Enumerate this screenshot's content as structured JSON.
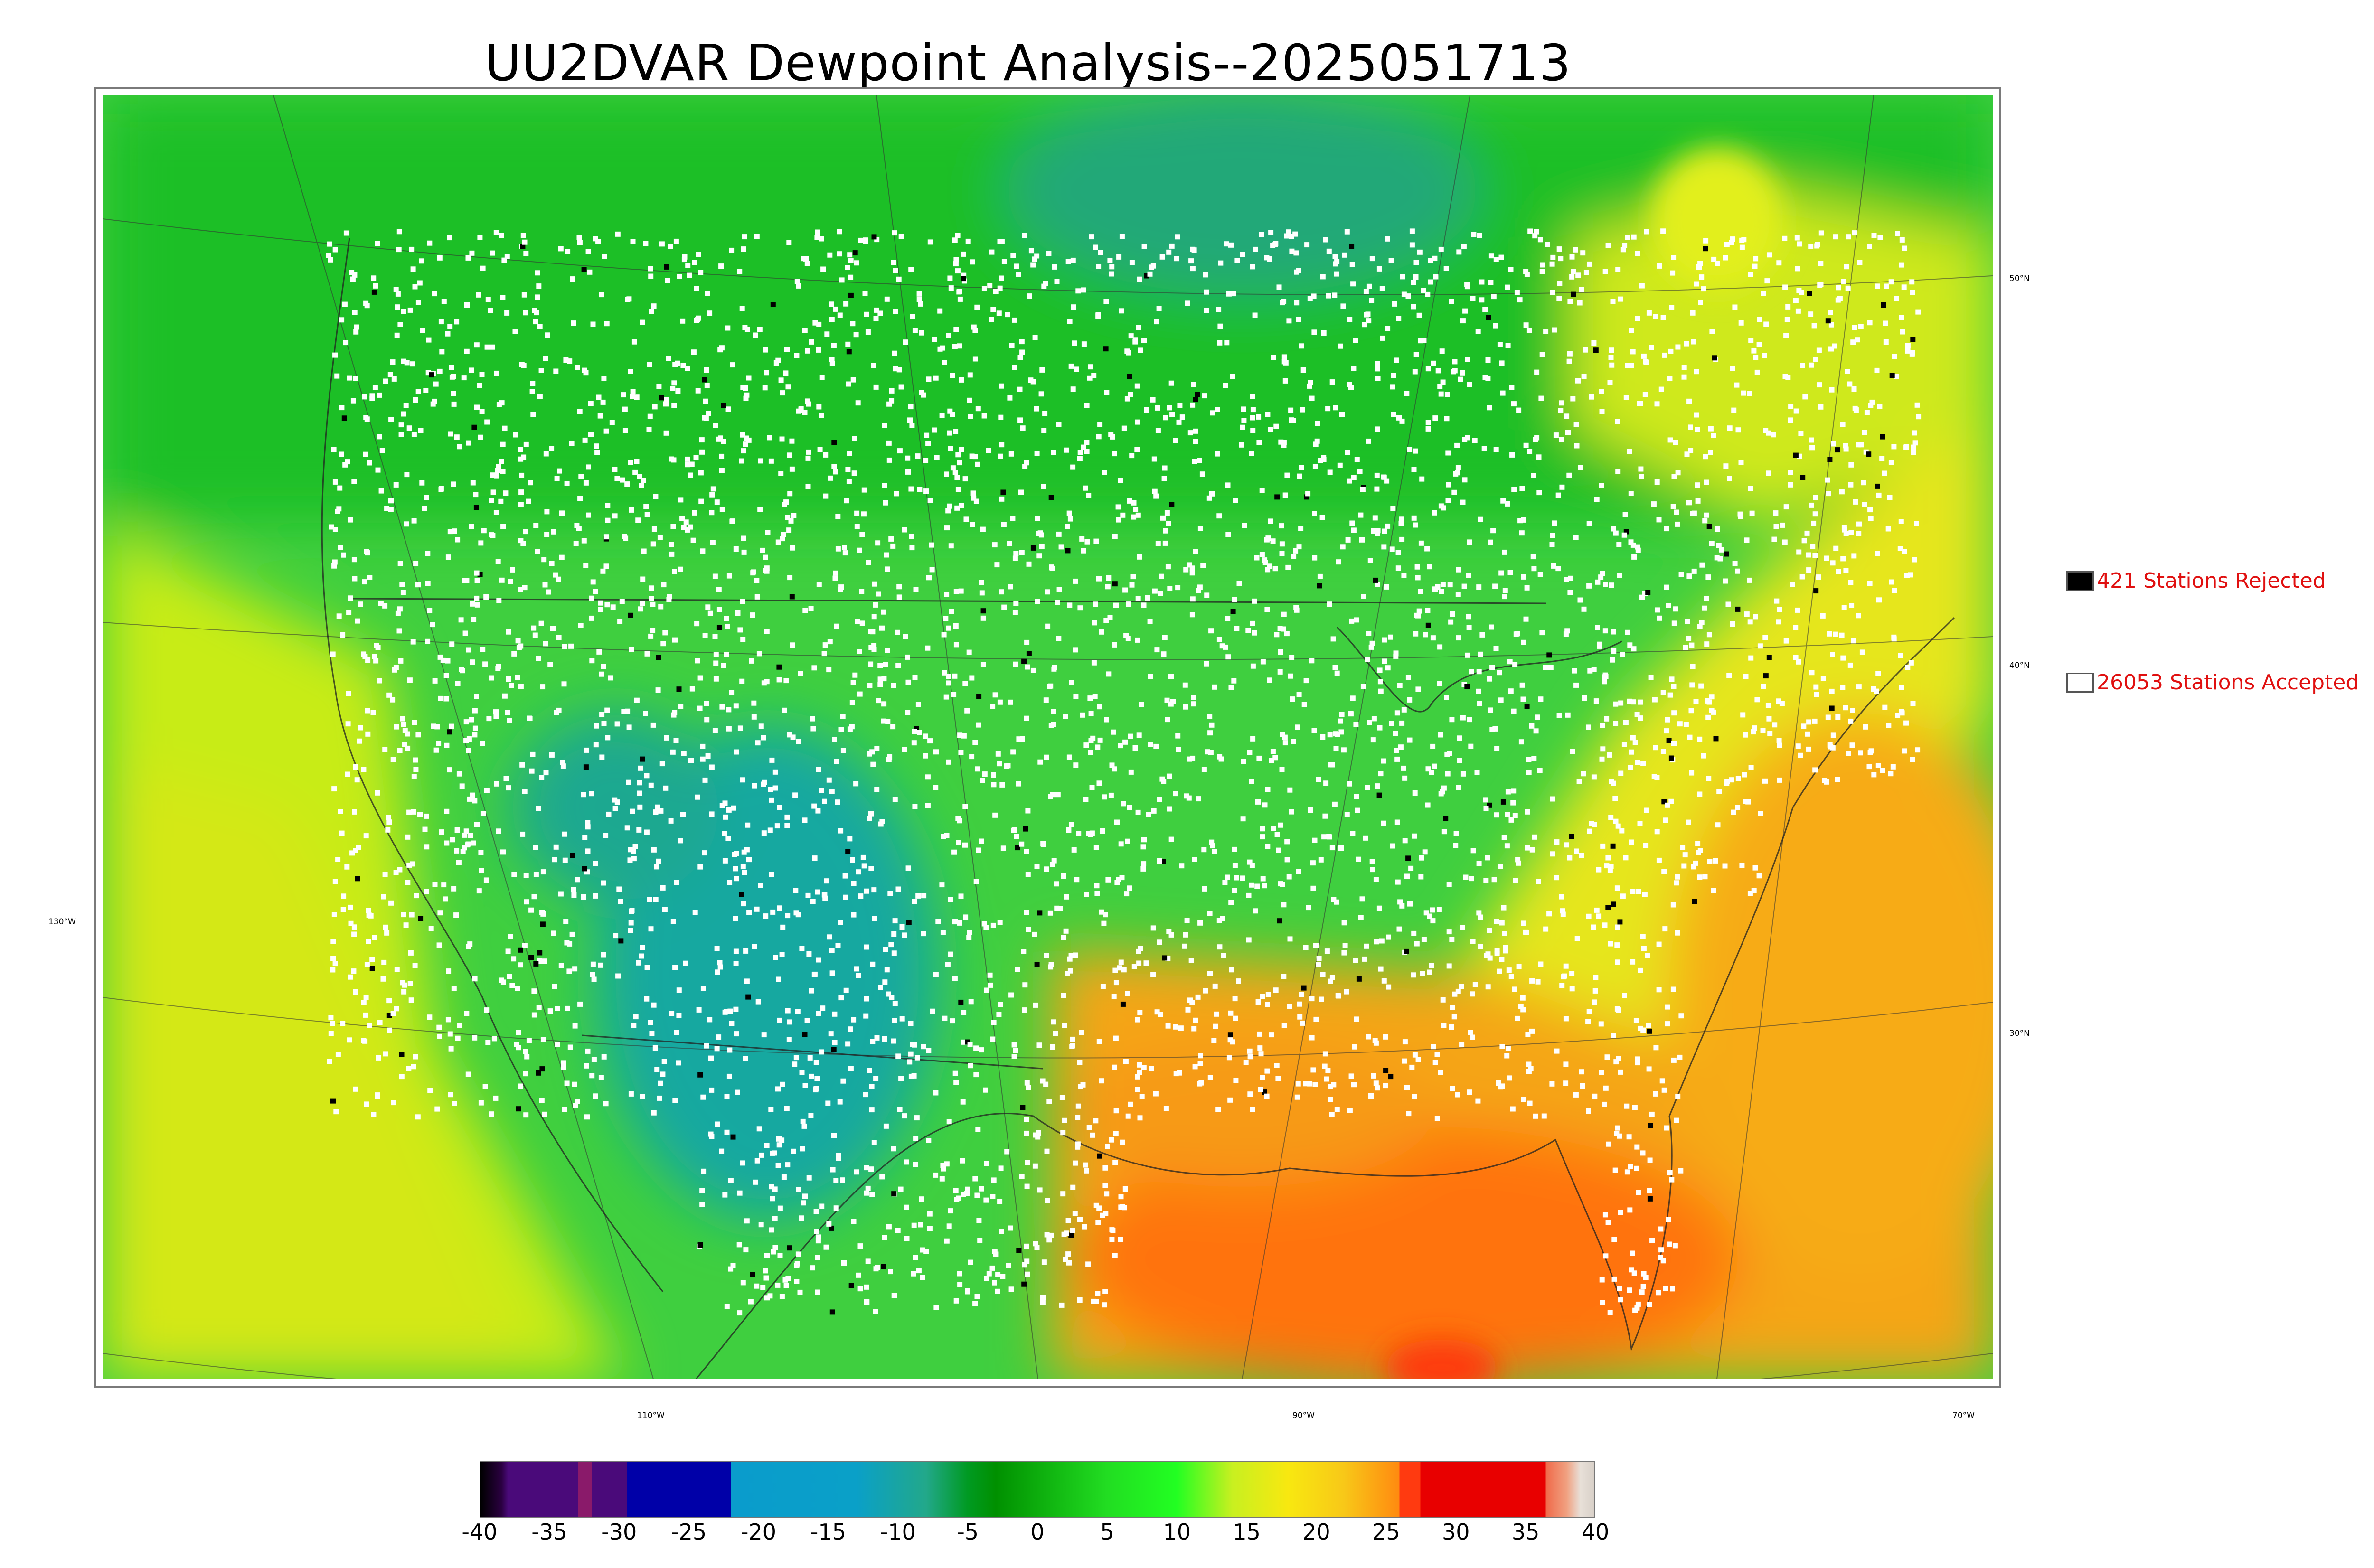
{
  "title": "UU2DVAR Dewpoint Analysis--2025051713",
  "map": {
    "lat_labels": [
      "50°N",
      "40°N",
      "30°N"
    ],
    "lon_labels": [
      "130°W",
      "110°W",
      "90°W",
      "70°W"
    ],
    "colors": {
      "ocean_west": "#c8ee10",
      "ocean_southeast": "#f6ac18",
      "gulf": "#ff7a10",
      "canada": "#22bb22",
      "plains": "#11b822",
      "dry_southwest": "#1aa8a8",
      "humid_east": "#e8e818",
      "accepted_station": "#ffffff",
      "rejected_station": "#000000"
    }
  },
  "legend": {
    "rejected": {
      "label": "421 Stations Rejected",
      "color": "#000000"
    },
    "accepted": {
      "label": "26053 Stations Accepted",
      "color": "#ffffff"
    }
  },
  "colorbar": {
    "min": -40,
    "max": 40,
    "ticks": [
      "-40",
      "-35",
      "-30",
      "-25",
      "-20",
      "-15",
      "-10",
      "-5",
      "0",
      "5",
      "10",
      "15",
      "20",
      "25",
      "30",
      "35",
      "40"
    ],
    "stops": [
      {
        "value": -40,
        "color": "#000000"
      },
      {
        "value": -38.5,
        "color": "#2a0040"
      },
      {
        "value": -38,
        "color": "#4a0a7a"
      },
      {
        "value": -33,
        "color": "#4a0a7a"
      },
      {
        "value": -33,
        "color": "#8a1a6a"
      },
      {
        "value": -32,
        "color": "#8a1a6a"
      },
      {
        "value": -32,
        "color": "#4a0a7a"
      },
      {
        "value": -29.5,
        "color": "#4a0a7a"
      },
      {
        "value": -29.5,
        "color": "#0000a8"
      },
      {
        "value": -22,
        "color": "#0000a8"
      },
      {
        "value": -22,
        "color": "#0a9ccc"
      },
      {
        "value": -13,
        "color": "#0aa0c8"
      },
      {
        "value": -8,
        "color": "#22a88a"
      },
      {
        "value": -5,
        "color": "#009a22"
      },
      {
        "value": -3,
        "color": "#009000"
      },
      {
        "value": 5,
        "color": "#22dd22"
      },
      {
        "value": 10,
        "color": "#22ff22"
      },
      {
        "value": 14,
        "color": "#c8f020"
      },
      {
        "value": 18,
        "color": "#f8e810"
      },
      {
        "value": 22,
        "color": "#f8c818"
      },
      {
        "value": 26,
        "color": "#ff8a10"
      },
      {
        "value": 26,
        "color": "#ff3a10"
      },
      {
        "value": 27.5,
        "color": "#ff3a10"
      },
      {
        "value": 27.5,
        "color": "#e80000"
      },
      {
        "value": 36.5,
        "color": "#e80000"
      },
      {
        "value": 36.5,
        "color": "#f06a4a"
      },
      {
        "value": 38,
        "color": "#f0a080"
      },
      {
        "value": 39,
        "color": "#e8e0d8"
      },
      {
        "value": 40,
        "color": "#d8d0c8"
      }
    ]
  }
}
